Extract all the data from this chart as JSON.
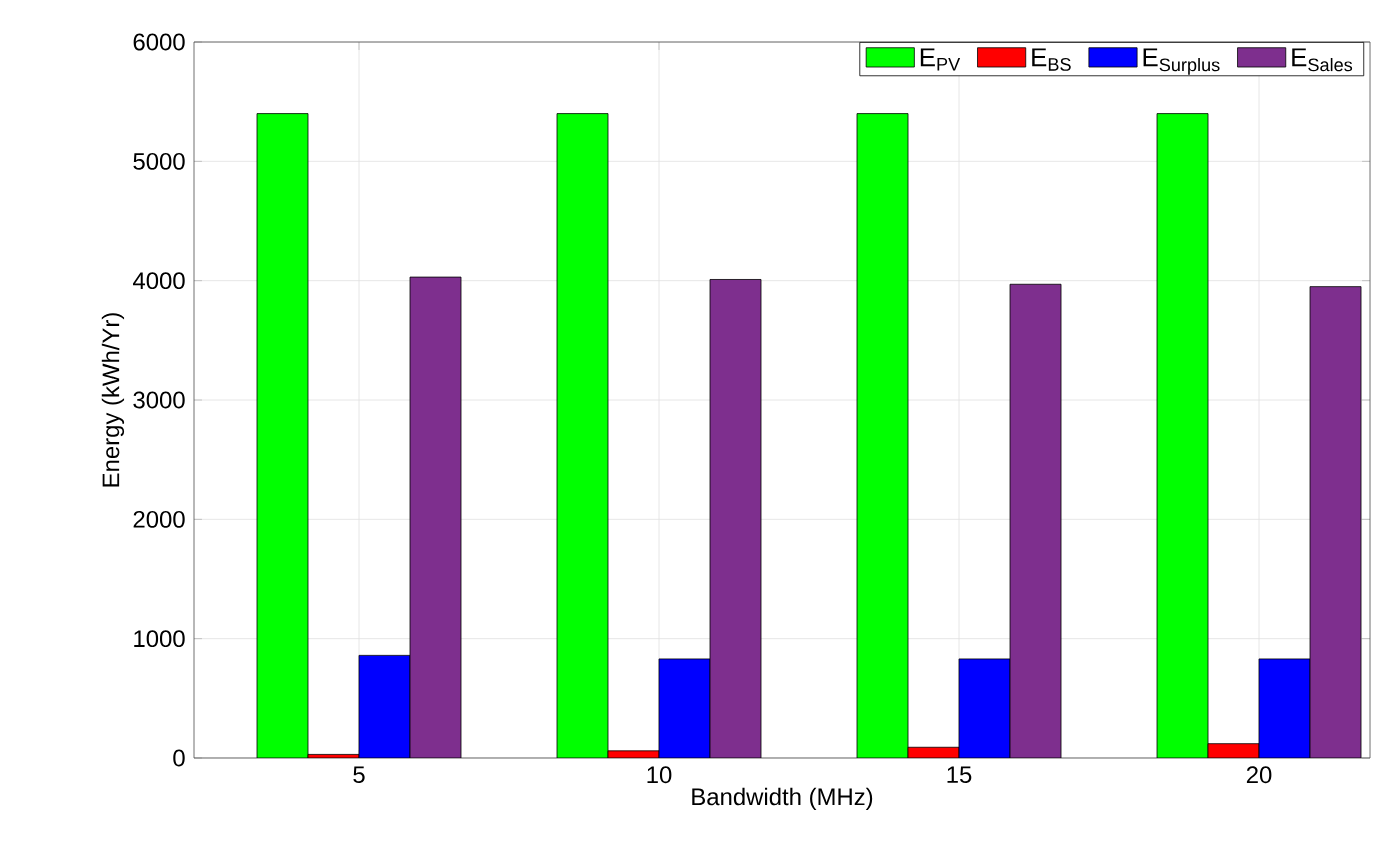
{
  "chart_data": {
    "type": "bar",
    "xlabel": "Bandwidth (MHz)",
    "ylabel": "Energy (kWh/Yr)",
    "categories": [
      "5",
      "10",
      "15",
      "20"
    ],
    "series": [
      {
        "name": "E$_{PV}$",
        "color": "#00ff00",
        "values": [
          5400,
          5400,
          5400,
          5400
        ]
      },
      {
        "name": "E$_{BS}$",
        "color": "#ff0000",
        "values": [
          30,
          60,
          90,
          120
        ]
      },
      {
        "name": "E$_{Surplus}$",
        "color": "#0000ff",
        "values": [
          860,
          830,
          830,
          830
        ]
      },
      {
        "name": "E$_{Sales}$",
        "color": "#7e2f8e",
        "values": [
          4030,
          4010,
          3970,
          3950
        ]
      }
    ],
    "ylim": [
      0,
      6000
    ],
    "yticks": [
      0,
      1000,
      2000,
      3000,
      4000,
      5000,
      6000
    ],
    "grid": true,
    "legend": "top right"
  }
}
